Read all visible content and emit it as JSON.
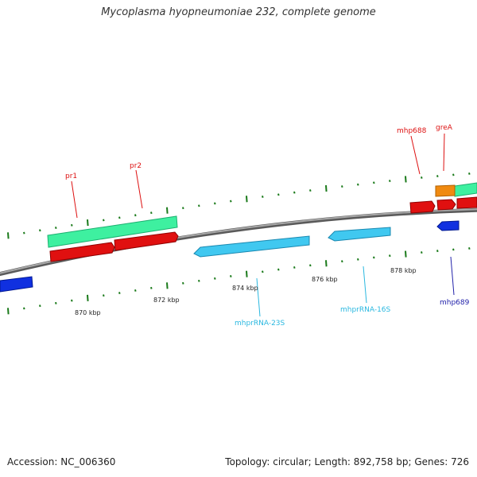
{
  "title": "Mycoplasma hyopneumoniae 232, complete genome",
  "footer": {
    "accession": "Accession: NC_006360",
    "summary": "Topology: circular; Length: 892,758 bp; Genes: 726"
  },
  "colors": {
    "backbone": "#8a8a8a",
    "tick": "#1a7a1a",
    "forward_gene": "#e01010",
    "forward_operon": "#3ef0a0",
    "forward_feature_orange": "#f08a10",
    "reverse_gene": "#1030e0",
    "rna": "#40c8f0",
    "label_red": "#dd1111",
    "label_cyan": "#2ab8e0",
    "label_blue": "#2222aa"
  },
  "scale_labels": [
    "870 kbp",
    "872 kbp",
    "874 kbp",
    "876 kbp",
    "878 kbp"
  ],
  "gene_labels": {
    "pr1": "pr1",
    "pr2": "pr2",
    "mhp688": "mhp688",
    "greA": "greA",
    "mhp689": "mhp689",
    "rna23s": "mhprRNA-23S",
    "rna16s": "mhprRNA-16S"
  }
}
